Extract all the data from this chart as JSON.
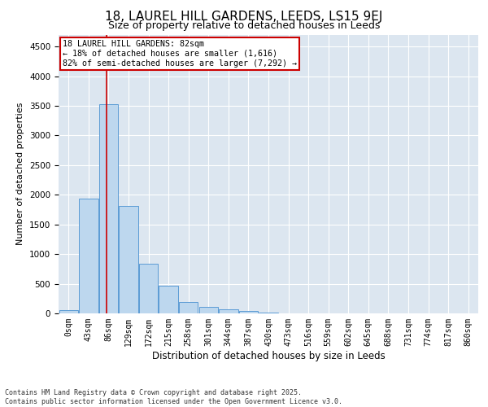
{
  "title1": "18, LAUREL HILL GARDENS, LEEDS, LS15 9EJ",
  "title2": "Size of property relative to detached houses in Leeds",
  "xlabel": "Distribution of detached houses by size in Leeds",
  "ylabel": "Number of detached properties",
  "bar_categories": [
    "0sqm",
    "43sqm",
    "86sqm",
    "129sqm",
    "172sqm",
    "215sqm",
    "258sqm",
    "301sqm",
    "344sqm",
    "387sqm",
    "430sqm",
    "473sqm",
    "516sqm",
    "559sqm",
    "602sqm",
    "645sqm",
    "688sqm",
    "731sqm",
    "774sqm",
    "817sqm",
    "860sqm"
  ],
  "bar_values": [
    50,
    1930,
    3520,
    1810,
    840,
    460,
    195,
    110,
    65,
    35,
    10,
    5,
    0,
    0,
    0,
    0,
    0,
    0,
    0,
    0,
    0
  ],
  "bar_color": "#bdd7ee",
  "bar_edge_color": "#5b9bd5",
  "subject_sqm": 82,
  "subject_label": "18 LAUREL HILL GARDENS: 82sqm",
  "annotation_line1": "← 18% of detached houses are smaller (1,616)",
  "annotation_line2": "82% of semi-detached houses are larger (7,292) →",
  "vline_color": "#cc0000",
  "annotation_box_edgecolor": "#cc0000",
  "ylim": [
    0,
    4700
  ],
  "yticks": [
    0,
    500,
    1000,
    1500,
    2000,
    2500,
    3000,
    3500,
    4000,
    4500
  ],
  "bg_color": "#dce6f0",
  "footer1": "Contains HM Land Registry data © Crown copyright and database right 2025.",
  "footer2": "Contains public sector information licensed under the Open Government Licence v3.0.",
  "title_fontsize": 11,
  "subtitle_fontsize": 9
}
